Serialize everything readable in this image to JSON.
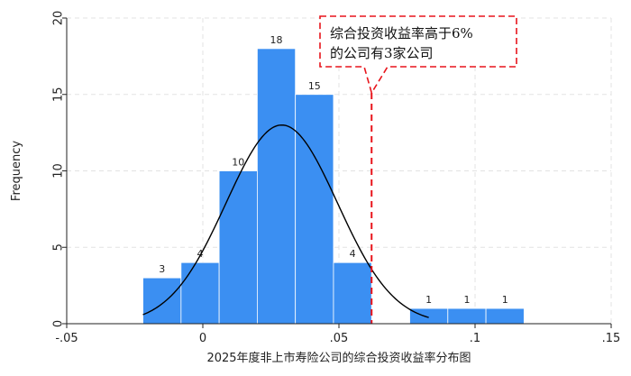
{
  "chart_data": {
    "type": "bar",
    "subtype": "histogram",
    "xlabel": "2025年度非上市寿险公司的综合投资收益率分布图",
    "ylabel": "Frequency",
    "xlim": [
      -0.05,
      0.15
    ],
    "ylim": [
      0,
      20
    ],
    "x_ticks": [
      {
        "value": -0.05,
        "label": "-.05"
      },
      {
        "value": 0,
        "label": "0"
      },
      {
        "value": 0.05,
        "label": ".05"
      },
      {
        "value": 0.1,
        "label": ".1"
      },
      {
        "value": 0.15,
        "label": ".15"
      }
    ],
    "y_ticks": [
      {
        "value": 0,
        "label": "0"
      },
      {
        "value": 5,
        "label": "5"
      },
      {
        "value": 10,
        "label": "10"
      },
      {
        "value": 15,
        "label": "15"
      },
      {
        "value": 20,
        "label": "20"
      }
    ],
    "bins": [
      {
        "start": -0.022,
        "end": -0.008,
        "count": 3,
        "label": "3"
      },
      {
        "start": -0.008,
        "end": 0.006,
        "count": 4,
        "label": "4"
      },
      {
        "start": 0.006,
        "end": 0.02,
        "count": 10,
        "label": "10"
      },
      {
        "start": 0.02,
        "end": 0.034,
        "count": 18,
        "label": "18"
      },
      {
        "start": 0.034,
        "end": 0.048,
        "count": 15,
        "label": "15"
      },
      {
        "start": 0.048,
        "end": 0.062,
        "count": 4,
        "label": "4"
      },
      {
        "start": 0.076,
        "end": 0.09,
        "count": 1,
        "label": "1"
      },
      {
        "start": 0.09,
        "end": 0.104,
        "count": 1,
        "label": "1"
      },
      {
        "start": 0.104,
        "end": 0.118,
        "count": 1,
        "label": "1"
      }
    ],
    "normal_curve": {
      "mean": 0.029,
      "sd": 0.0205,
      "peak": 13,
      "x_start": -0.022,
      "x_end": 0.083
    },
    "reference_line": {
      "x": 0.062
    },
    "annotation": {
      "lines": [
        "综合投资收益率高于6%",
        "的公司有3家公司"
      ]
    },
    "grid": true,
    "colors": {
      "bar": "#3b8ff2",
      "bar_edge": "#ffffff",
      "curve": "#000000",
      "reference": "#e8141b",
      "grid": "#e3e3e3",
      "axis": "#222222"
    }
  }
}
